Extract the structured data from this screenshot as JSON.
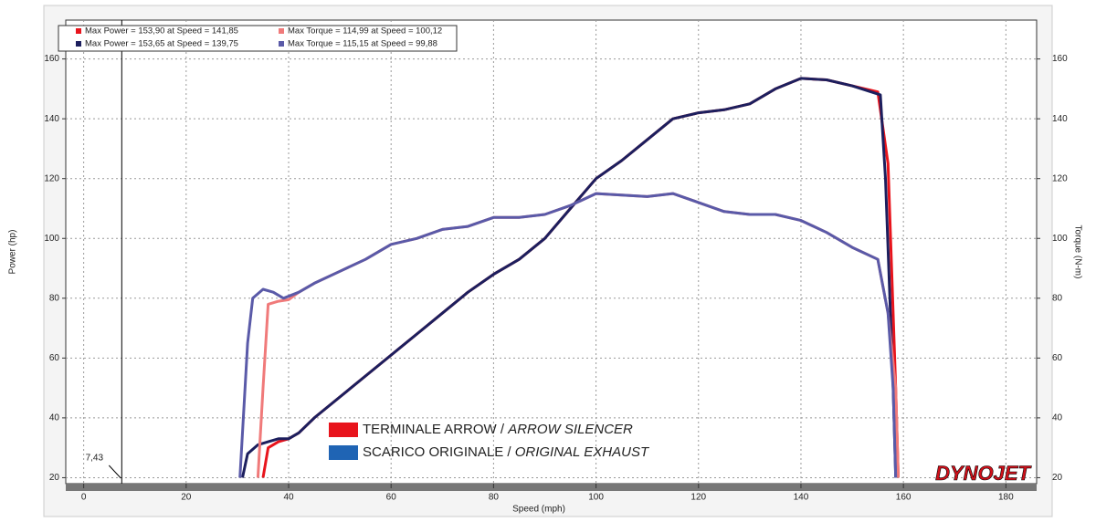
{
  "chart_data": {
    "type": "line",
    "x_label": "Speed (mph)",
    "y_label": "Power (hp)",
    "y2_label": "Torque (N-m)",
    "xlim": [
      -3.5,
      186
    ],
    "xticks": [
      0,
      20,
      40,
      60,
      80,
      100,
      120,
      140,
      160,
      180
    ],
    "ylim": [
      18,
      173
    ],
    "yticks": [
      20,
      40,
      60,
      80,
      100,
      120,
      140,
      160
    ],
    "y2lim": [
      18,
      173
    ],
    "y2ticks": [
      20,
      40,
      60,
      80,
      100,
      120,
      140,
      160
    ],
    "grid": true,
    "legend": "top-left",
    "series": [
      {
        "name": "Max Power = 153,90 at Speed = 141,85",
        "color": "#e8141c",
        "x": [
          35,
          36,
          38,
          40,
          42,
          45,
          50,
          55,
          60,
          65,
          70,
          75,
          80,
          85,
          90,
          95,
          100,
          105,
          110,
          115,
          120,
          125,
          130,
          135,
          140,
          145,
          150,
          155,
          157,
          158.5,
          159
        ],
        "values": [
          20,
          30,
          32,
          33,
          35,
          40,
          47,
          54,
          61,
          68,
          75,
          82,
          88,
          93,
          100,
          110,
          120,
          126,
          133,
          140,
          142,
          143,
          145,
          150,
          153.5,
          153,
          151,
          149,
          125,
          50,
          20
        ]
      },
      {
        "name": "Max Power = 153,65 at Speed = 139,75",
        "color": "#1c1f5e",
        "x": [
          31,
          32,
          34,
          36,
          38,
          40,
          42,
          45,
          50,
          55,
          60,
          65,
          70,
          75,
          80,
          85,
          90,
          95,
          100,
          105,
          110,
          115,
          120,
          125,
          130,
          135,
          140,
          145,
          150,
          155.5,
          156.5,
          158,
          158.5
        ],
        "values": [
          20,
          28,
          31,
          32,
          33,
          33,
          35,
          40,
          47,
          54,
          61,
          68,
          75,
          82,
          88,
          93,
          100,
          110,
          120,
          126,
          133,
          140,
          142,
          143,
          145,
          150,
          153.5,
          153,
          151,
          148,
          120,
          50,
          20
        ]
      },
      {
        "name": "Max Torque = 114,99 at Speed = 100,12",
        "color": "#f07a7a",
        "axis": "y2",
        "x": [
          34,
          35,
          36,
          38,
          40,
          42,
          45,
          50,
          55,
          60,
          65,
          70,
          75,
          80,
          85,
          90,
          95,
          100,
          105,
          110,
          115,
          120,
          125,
          130,
          135,
          140,
          145,
          150,
          155,
          157,
          158.5,
          159
        ],
        "values": [
          20,
          50,
          78,
          79,
          79.5,
          82,
          85,
          89,
          93,
          98,
          100,
          103,
          104,
          107,
          107,
          108,
          111,
          115,
          114.5,
          114,
          115,
          112,
          109,
          108,
          108,
          106,
          102,
          97,
          93,
          75,
          50,
          20
        ]
      },
      {
        "name": "Max Torque = 115,15 at Speed = 99,88",
        "color": "#5a5aa8",
        "axis": "y2",
        "x": [
          30.5,
          32,
          33,
          35,
          37,
          39,
          42,
          45,
          50,
          55,
          60,
          65,
          70,
          75,
          80,
          85,
          90,
          95,
          100,
          105,
          110,
          115,
          120,
          125,
          130,
          135,
          140,
          145,
          150,
          155,
          157,
          158,
          158.5
        ],
        "values": [
          20,
          65,
          80,
          83,
          82,
          80,
          82,
          85,
          89,
          93,
          98,
          100,
          103,
          104,
          107,
          107,
          108,
          111,
          115,
          114.5,
          114,
          115,
          112,
          109,
          108,
          108,
          106,
          102,
          97,
          93,
          75,
          50,
          20
        ]
      }
    ],
    "marker_line": {
      "value": 7.43,
      "label": "7,43"
    },
    "overlay_legend": [
      {
        "label": "TERMINALE ARROW /",
        "label_en": "ARROW SILENCER",
        "color": "#e8141c"
      },
      {
        "label": "SCARICO ORIGINALE /",
        "label_en": "ORIGINAL EXHAUST",
        "color": "#1f64b4"
      }
    ],
    "logo": "DYNOJET"
  }
}
